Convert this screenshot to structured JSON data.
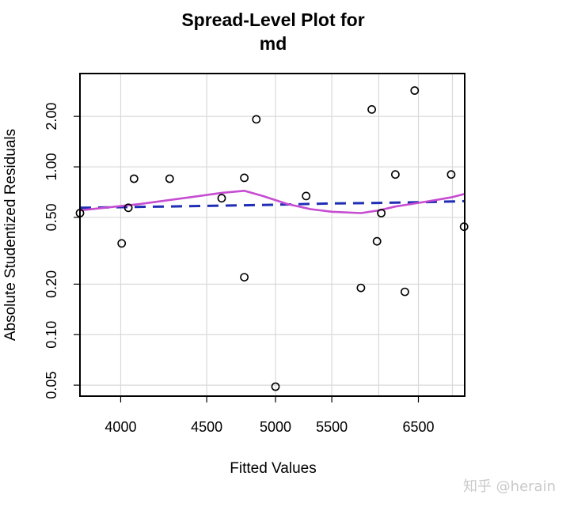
{
  "chart_data": {
    "type": "scatter",
    "title_line1": "Spread-Level Plot for",
    "title_line2": "md",
    "xlabel": "Fitted Values",
    "ylabel": "Absolute Studentized Residuals",
    "x_scale": "reciprocal",
    "y_scale": "log",
    "xlim": [
      3800,
      7200
    ],
    "ylim": [
      0.043,
      3.6
    ],
    "grid": true,
    "x_ticks": [
      4000,
      4500,
      5000,
      5500,
      6500
    ],
    "x_tick_labels": [
      "4000",
      "4500",
      "5000",
      "5500",
      "6500"
    ],
    "x_grid_extra": [
      6000,
      7000
    ],
    "y_ticks": [
      0.05,
      0.1,
      0.2,
      0.5,
      1.0,
      2.0
    ],
    "y_tick_labels": [
      "0.05",
      "0.10",
      "0.20",
      "0.50",
      "1.00",
      "2.00"
    ],
    "points": [
      {
        "x": 3800,
        "y": 0.53
      },
      {
        "x": 4005,
        "y": 0.35
      },
      {
        "x": 4040,
        "y": 0.57
      },
      {
        "x": 4070,
        "y": 0.85
      },
      {
        "x": 4270,
        "y": 0.85
      },
      {
        "x": 4600,
        "y": 0.65
      },
      {
        "x": 4760,
        "y": 0.22
      },
      {
        "x": 4760,
        "y": 0.86
      },
      {
        "x": 4850,
        "y": 1.92
      },
      {
        "x": 5000,
        "y": 0.049
      },
      {
        "x": 5260,
        "y": 0.67
      },
      {
        "x": 5800,
        "y": 0.19
      },
      {
        "x": 5920,
        "y": 2.2
      },
      {
        "x": 5980,
        "y": 0.36
      },
      {
        "x": 6030,
        "y": 0.53
      },
      {
        "x": 6200,
        "y": 0.9
      },
      {
        "x": 6320,
        "y": 0.18
      },
      {
        "x": 6450,
        "y": 2.85
      },
      {
        "x": 6980,
        "y": 0.9
      },
      {
        "x": 7190,
        "y": 0.44
      }
    ],
    "series": [
      {
        "style": "dashed",
        "color": "#1f2db5",
        "x": [
          3800,
          4500,
          5000,
          5500,
          6000,
          6500,
          7200
        ],
        "y": [
          0.57,
          0.585,
          0.595,
          0.605,
          0.61,
          0.615,
          0.625
        ]
      },
      {
        "style": "solid",
        "color": "#c64cd1",
        "x": [
          3800,
          4100,
          4400,
          4600,
          4760,
          4900,
          5100,
          5300,
          5500,
          5800,
          6000,
          6200,
          6400,
          6600,
          6800,
          7000,
          7200
        ],
        "y": [
          0.55,
          0.6,
          0.66,
          0.7,
          0.72,
          0.67,
          0.6,
          0.56,
          0.54,
          0.53,
          0.55,
          0.58,
          0.6,
          0.62,
          0.64,
          0.66,
          0.69
        ]
      }
    ]
  },
  "watermark": "知乎 @herain"
}
